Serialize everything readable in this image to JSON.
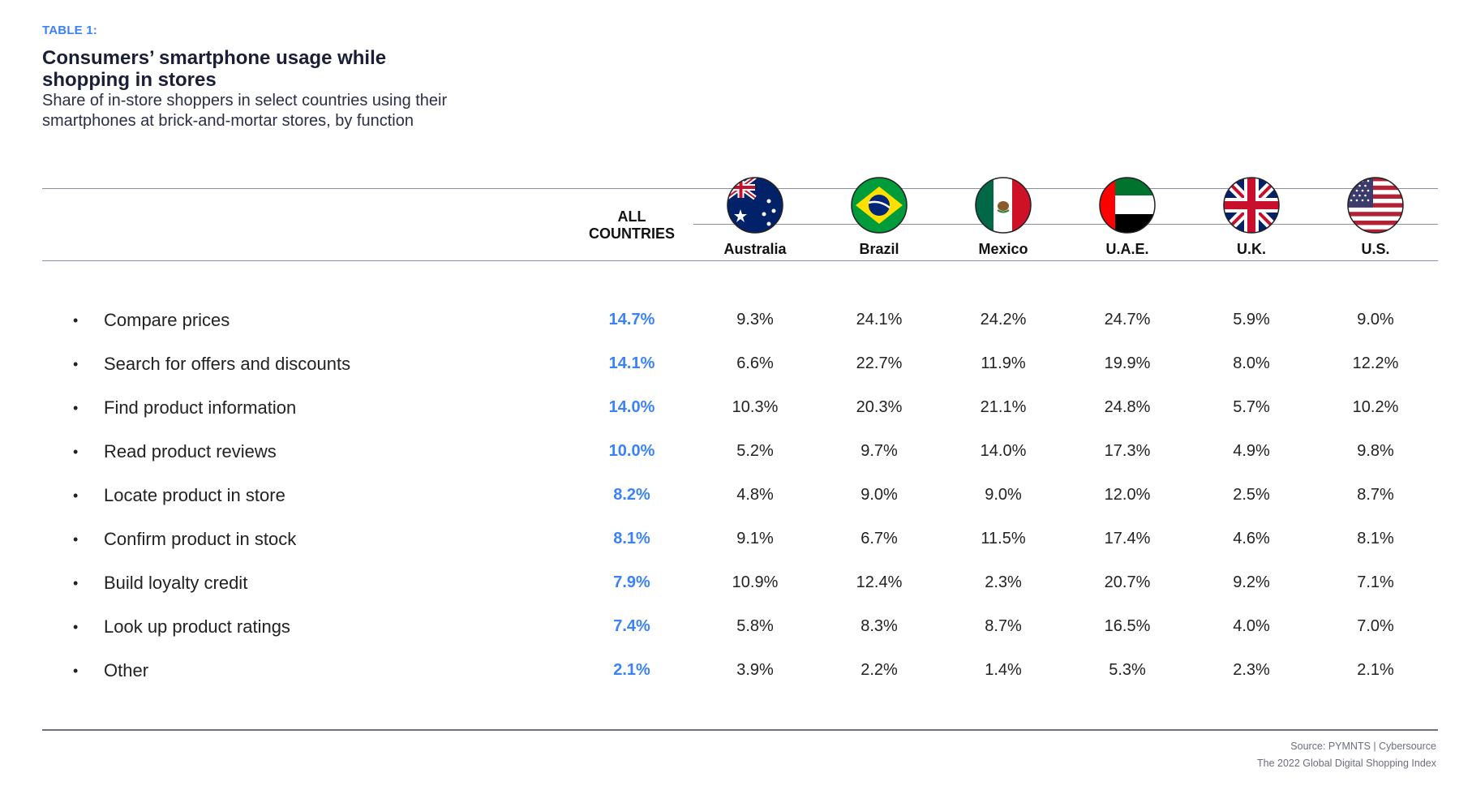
{
  "header": {
    "tag": "TABLE 1:",
    "title": "Consumers’ smartphone usage while shopping in stores",
    "subtitle": "Share of in-store shoppers in select countries using their smartphones at brick-and-mortar stores, by function"
  },
  "chart_data": {
    "type": "table",
    "title": "Consumers’ smartphone usage while shopping in stores",
    "subtitle": "Share of in-store shoppers in select countries using their smartphones at brick-and-mortar stores, by function",
    "all_header": "ALL COUNTRIES",
    "columns": [
      "Australia",
      "Brazil",
      "Mexico",
      "U.A.E.",
      "U.K.",
      "U.S."
    ],
    "rows": [
      {
        "label": "Compare prices",
        "all": "14.7%",
        "values": [
          "9.3%",
          "24.1%",
          "24.2%",
          "24.7%",
          "5.9%",
          "9.0%"
        ]
      },
      {
        "label": "Search for offers and discounts",
        "all": "14.1%",
        "values": [
          "6.6%",
          "22.7%",
          "11.9%",
          "19.9%",
          "8.0%",
          "12.2%"
        ]
      },
      {
        "label": "Find product information",
        "all": "14.0%",
        "values": [
          "10.3%",
          "20.3%",
          "21.1%",
          "24.8%",
          "5.7%",
          "10.2%"
        ]
      },
      {
        "label": "Read product reviews",
        "all": "10.0%",
        "values": [
          "5.2%",
          "9.7%",
          "14.0%",
          "17.3%",
          "4.9%",
          "9.8%"
        ]
      },
      {
        "label": "Locate product in store",
        "all": "8.2%",
        "values": [
          "4.8%",
          "9.0%",
          "9.0%",
          "12.0%",
          "2.5%",
          "8.7%"
        ]
      },
      {
        "label": "Confirm product in stock",
        "all": "8.1%",
        "values": [
          "9.1%",
          "6.7%",
          "11.5%",
          "17.4%",
          "4.6%",
          "8.1%"
        ]
      },
      {
        "label": "Build loyalty credit",
        "all": "7.9%",
        "values": [
          "10.9%",
          "12.4%",
          "2.3%",
          "20.7%",
          "9.2%",
          "7.1%"
        ]
      },
      {
        "label": "Look up product ratings",
        "all": "7.4%",
        "values": [
          "5.8%",
          "8.3%",
          "8.7%",
          "16.5%",
          "4.0%",
          "7.0%"
        ]
      },
      {
        "label": "Other",
        "all": "2.1%",
        "values": [
          "3.9%",
          "2.2%",
          "1.4%",
          "5.3%",
          "2.3%",
          "2.1%"
        ]
      }
    ]
  },
  "flags": [
    "australia-flag-icon",
    "brazil-flag-icon",
    "mexico-flag-icon",
    "uae-flag-icon",
    "uk-flag-icon",
    "us-flag-icon"
  ],
  "colors": {
    "accent": "#3b82f6",
    "text": "#1a1f36",
    "rule": "#8c8fa3"
  },
  "footer": {
    "source_line1": "Source:  PYMNTS  |  Cybersource",
    "source_line2": "The 2022 Global Digital Shopping Index"
  }
}
